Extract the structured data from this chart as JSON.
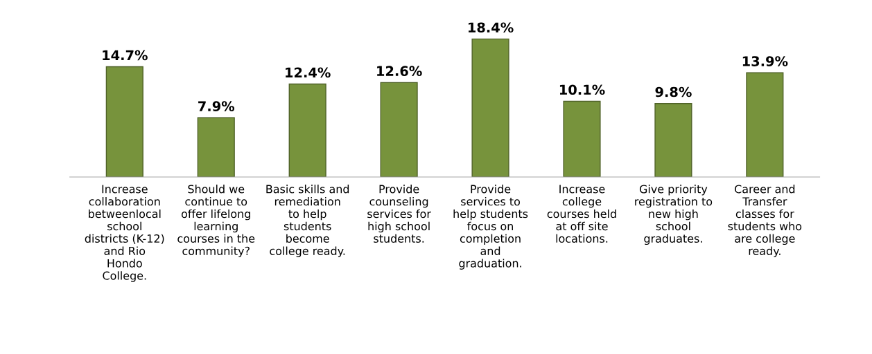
{
  "chart_data": {
    "type": "bar",
    "categories": [
      "Increase\ncollaboration\nbetweenlocal\nschool\ndistricts (K-12)\nand Rio\nHondo\nCollege.",
      "Should we\ncontinue to\noffer lifelong\nlearning\ncourses in the\ncommunity?",
      "Basic skills and\nremediation\nto help\nstudents\nbecome\ncollege ready.",
      "Provide\ncounseling\nservices for\nhigh school\nstudents.",
      "Provide\nservices to\nhelp students\nfocus on\ncompletion\nand\ngraduation.",
      "Increase\ncollege\ncourses held\nat off site\nlocations.",
      "Give priority\nregistration to\nnew high\nschool\ngraduates.",
      "Career and\nTransfer\nclasses for\nstudents who\nare college\nready."
    ],
    "values": [
      14.7,
      7.9,
      12.4,
      12.6,
      18.4,
      10.1,
      9.8,
      13.9
    ],
    "value_labels": [
      "14.7%",
      "7.9%",
      "12.4%",
      "12.6%",
      "18.4%",
      "10.1%",
      "9.8%",
      "13.9%"
    ],
    "color": "#77933c"
  }
}
